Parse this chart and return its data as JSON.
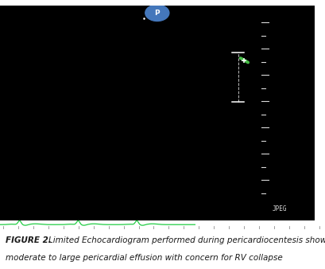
{
  "fig_width": 4.1,
  "fig_height": 3.38,
  "dpi": 100,
  "caption_line1_bold": "FIGURE 2.",
  "caption_line1_rest": " Limited Echocardiogram performed during pericardiocentesis showing",
  "caption_line2": "moderate to large pericardial effusion with concern for RV collapse",
  "caption_fontsize": 7.5,
  "caption_color": "#1a1a1a",
  "jpeg_label": "JPEG",
  "probe_marker": "P",
  "probe_color": "#4477bb",
  "green_line_color": "#22cc44",
  "caliper_green": "#44bb44",
  "separator_color": "#999999"
}
